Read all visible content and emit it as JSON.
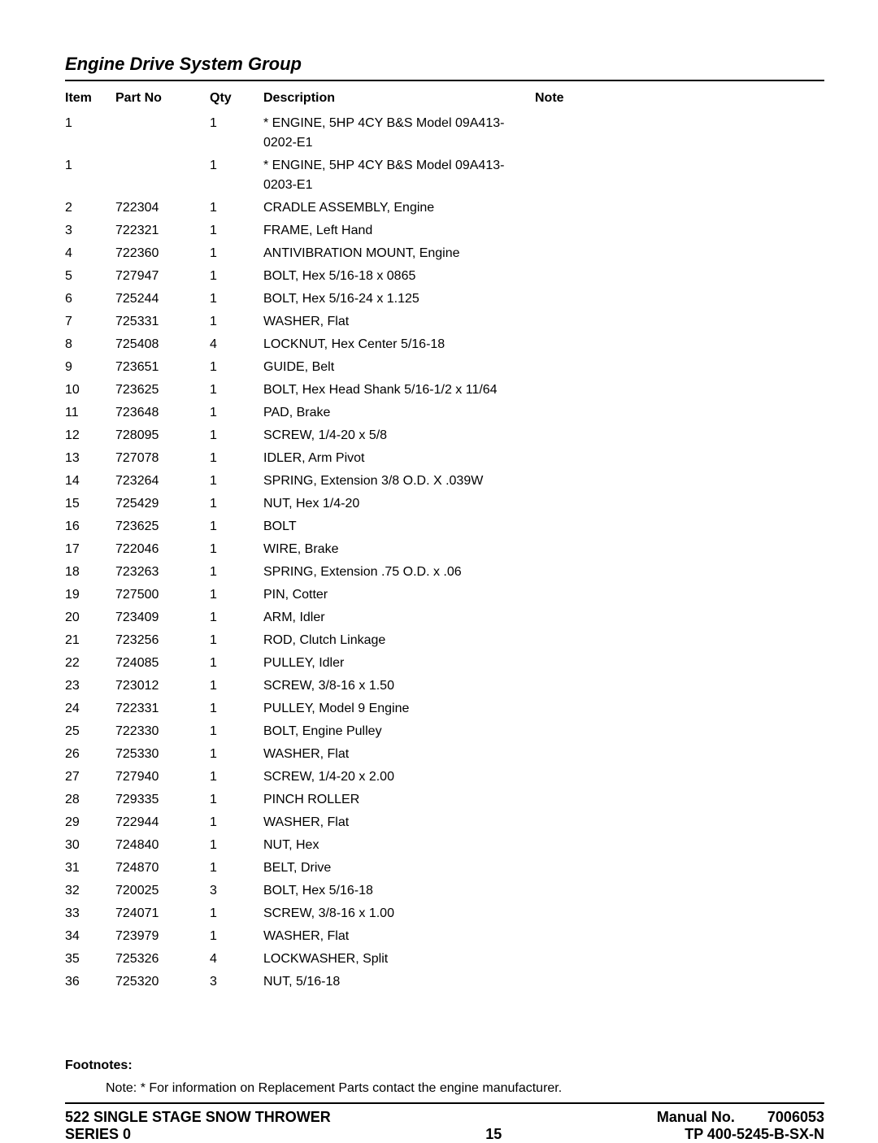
{
  "title": "Engine Drive System Group",
  "headers": {
    "item": "Item",
    "part": "Part No",
    "qty": "Qty",
    "desc": "Description",
    "note": "Note"
  },
  "rows": [
    {
      "item": "1",
      "part": "",
      "qty": "1",
      "desc": "* ENGINE, 5HP 4CY B&S Model 09A413-0202-E1",
      "note": ""
    },
    {
      "item": "1",
      "part": "",
      "qty": "1",
      "desc": "* ENGINE, 5HP 4CY B&S Model 09A413-0203-E1",
      "note": ""
    },
    {
      "item": "2",
      "part": "722304",
      "qty": "1",
      "desc": "CRADLE ASSEMBLY, Engine",
      "note": ""
    },
    {
      "item": "3",
      "part": "722321",
      "qty": "1",
      "desc": "FRAME, Left Hand",
      "note": ""
    },
    {
      "item": "4",
      "part": "722360",
      "qty": "1",
      "desc": "ANTIVIBRATION MOUNT, Engine",
      "note": ""
    },
    {
      "item": "5",
      "part": "727947",
      "qty": "1",
      "desc": "BOLT, Hex 5/16-18 x 0865",
      "note": ""
    },
    {
      "item": "6",
      "part": "725244",
      "qty": "1",
      "desc": "BOLT, Hex 5/16-24 x 1.125",
      "note": ""
    },
    {
      "item": "7",
      "part": "725331",
      "qty": "1",
      "desc": "WASHER, Flat",
      "note": ""
    },
    {
      "item": "8",
      "part": "725408",
      "qty": "4",
      "desc": "LOCKNUT, Hex Center 5/16-18",
      "note": ""
    },
    {
      "item": "9",
      "part": "723651",
      "qty": "1",
      "desc": "GUIDE, Belt",
      "note": ""
    },
    {
      "item": "10",
      "part": "723625",
      "qty": "1",
      "desc": "BOLT, Hex Head Shank 5/16-1/2 x 11/64",
      "note": ""
    },
    {
      "item": "11",
      "part": "723648",
      "qty": "1",
      "desc": "PAD, Brake",
      "note": ""
    },
    {
      "item": "12",
      "part": "728095",
      "qty": "1",
      "desc": "SCREW, 1/4-20 x 5/8",
      "note": ""
    },
    {
      "item": "13",
      "part": "727078",
      "qty": "1",
      "desc": "IDLER, Arm Pivot",
      "note": ""
    },
    {
      "item": "14",
      "part": "723264",
      "qty": "1",
      "desc": "SPRING, Extension 3/8 O.D. X .039W",
      "note": ""
    },
    {
      "item": "15",
      "part": "725429",
      "qty": "1",
      "desc": "NUT, Hex 1/4-20",
      "note": ""
    },
    {
      "item": "16",
      "part": "723625",
      "qty": "1",
      "desc": "BOLT",
      "note": ""
    },
    {
      "item": "17",
      "part": "722046",
      "qty": "1",
      "desc": "WIRE, Brake",
      "note": ""
    },
    {
      "item": "18",
      "part": "723263",
      "qty": "1",
      "desc": "SPRING, Extension .75 O.D. x .06",
      "note": ""
    },
    {
      "item": "19",
      "part": "727500",
      "qty": "1",
      "desc": "PIN, Cotter",
      "note": ""
    },
    {
      "item": "20",
      "part": "723409",
      "qty": "1",
      "desc": "ARM, Idler",
      "note": ""
    },
    {
      "item": "21",
      "part": "723256",
      "qty": "1",
      "desc": "ROD, Clutch Linkage",
      "note": ""
    },
    {
      "item": "22",
      "part": "724085",
      "qty": "1",
      "desc": "PULLEY, Idler",
      "note": ""
    },
    {
      "item": "23",
      "part": "723012",
      "qty": "1",
      "desc": "SCREW, 3/8-16 x 1.50",
      "note": ""
    },
    {
      "item": "24",
      "part": "722331",
      "qty": "1",
      "desc": "PULLEY, Model 9 Engine",
      "note": ""
    },
    {
      "item": "25",
      "part": "722330",
      "qty": "1",
      "desc": "BOLT, Engine Pulley",
      "note": ""
    },
    {
      "item": "26",
      "part": "725330",
      "qty": "1",
      "desc": "WASHER, Flat",
      "note": ""
    },
    {
      "item": "27",
      "part": "727940",
      "qty": "1",
      "desc": "SCREW, 1/4-20 x 2.00",
      "note": ""
    },
    {
      "item": "28",
      "part": "729335",
      "qty": "1",
      "desc": "PINCH ROLLER",
      "note": ""
    },
    {
      "item": "29",
      "part": "722944",
      "qty": "1",
      "desc": "WASHER, Flat",
      "note": ""
    },
    {
      "item": "30",
      "part": "724840",
      "qty": "1",
      "desc": "NUT, Hex",
      "note": ""
    },
    {
      "item": "31",
      "part": "724870",
      "qty": "1",
      "desc": "BELT, Drive",
      "note": ""
    },
    {
      "item": "32",
      "part": "720025",
      "qty": "3",
      "desc": "BOLT, Hex 5/16-18",
      "note": ""
    },
    {
      "item": "33",
      "part": "724071",
      "qty": "1",
      "desc": "SCREW, 3/8-16 x 1.00",
      "note": ""
    },
    {
      "item": "34",
      "part": "723979",
      "qty": "1",
      "desc": "WASHER, Flat",
      "note": ""
    },
    {
      "item": "35",
      "part": "725326",
      "qty": "4",
      "desc": "LOCKWASHER, Split",
      "note": ""
    },
    {
      "item": "36",
      "part": "725320",
      "qty": "3",
      "desc": "NUT, 5/16-18",
      "note": ""
    }
  ],
  "footnotes": {
    "label": "Footnotes:",
    "text": "Note: * For information on Replacement Parts contact the engine manufacturer."
  },
  "footer": {
    "product_line1": "522 SINGLE STAGE SNOW THROWER",
    "product_line2": "SERIES 0",
    "page_no": "15",
    "manual_label": "Manual No.",
    "manual_no": "7006053",
    "tp": "TP 400-5245-B-SX-N"
  }
}
